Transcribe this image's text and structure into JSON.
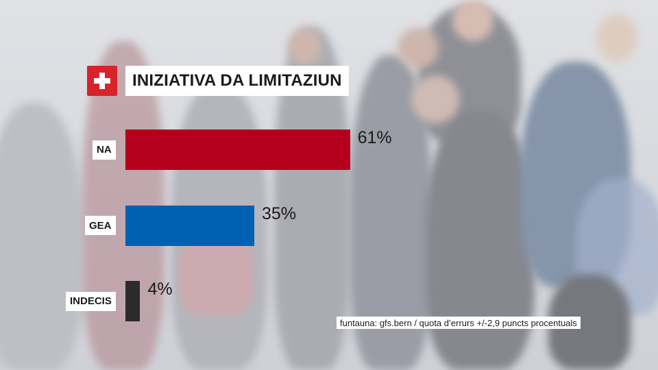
{
  "header": {
    "flag_icon": "swiss-flag-icon",
    "title": "INIZIATIVA DA LIMITAZIUN"
  },
  "chart_data": {
    "type": "bar",
    "orientation": "horizontal",
    "title": "INIZIATIVA DA LIMITAZIUN",
    "categories": [
      "NA",
      "GEA",
      "INDECIS"
    ],
    "values": [
      61,
      35,
      4
    ],
    "value_labels": [
      "61%",
      "35%",
      "4%"
    ],
    "colors": [
      "#b5001c",
      "#0061b3",
      "#2b2b2b"
    ],
    "xlim": [
      0,
      100
    ],
    "grid": false,
    "legend": "none"
  },
  "footer": {
    "source": "funtauna: gfs.bern / quota d’errurs +/-2,9 puncts procentuals"
  }
}
